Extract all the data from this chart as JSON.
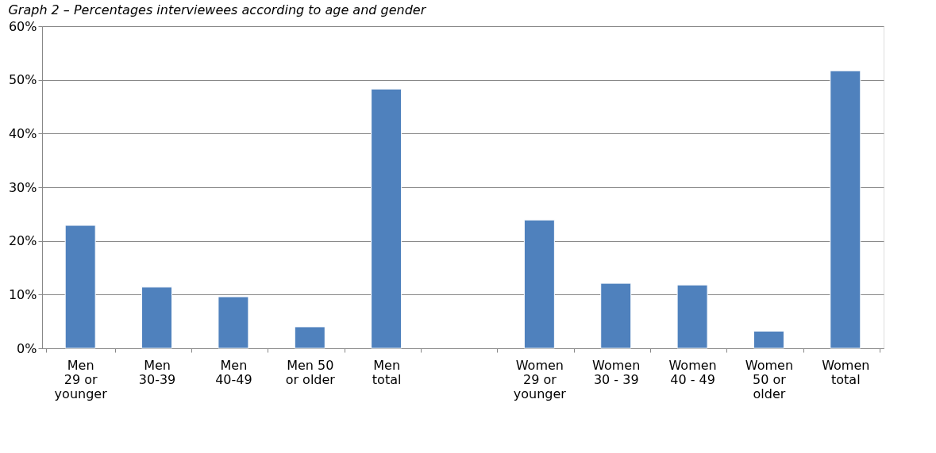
{
  "chart_data": {
    "type": "bar",
    "title": "Graph 2 – Percentages interviewees according to age and gender",
    "categories": [
      "Men\n29 or\nyounger",
      "Men\n30-39",
      "Men\n40-49",
      "Men 50\nor older",
      "Men\ntotal",
      null,
      "Women\n29 or\nyounger",
      "Women\n30 - 39",
      "Women\n40 - 49",
      "Women\n50 or\nolder",
      "Women\ntotal"
    ],
    "values": [
      22.9,
      11.4,
      9.6,
      4.0,
      48.3,
      null,
      23.9,
      12.1,
      11.8,
      3.2,
      51.7
    ],
    "color": "#4f81bd",
    "ylim": [
      0,
      60
    ],
    "yticks": [
      {
        "value": 0,
        "label": "0%"
      },
      {
        "value": 10,
        "label": "10%"
      },
      {
        "value": 20,
        "label": "20%"
      },
      {
        "value": 30,
        "label": "30%"
      },
      {
        "value": 40,
        "label": "40%"
      },
      {
        "value": 50,
        "label": "50%"
      },
      {
        "value": 60,
        "label": "60%"
      }
    ],
    "grid": "y"
  }
}
